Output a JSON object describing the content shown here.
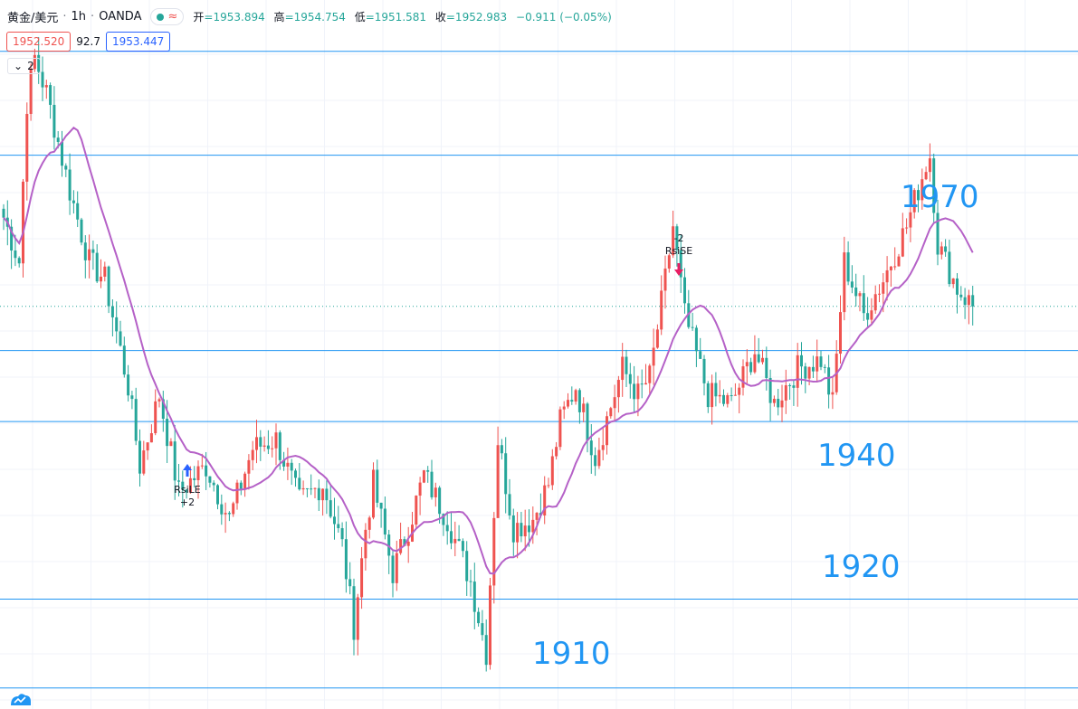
{
  "legend": {
    "symbol": "黄金/美元",
    "interval": "1h",
    "broker": "OANDA",
    "open_label": "开",
    "open": "=1953.894",
    "high_label": "高",
    "high": "=1954.754",
    "low_label": "低",
    "low": "=1951.581",
    "close_label": "收",
    "close": "=1952.983",
    "change": "−0.911 (−0.05%)"
  },
  "prices": {
    "bid": "1952.520",
    "spread": "92.7",
    "ask": "1953.447"
  },
  "indicators_toggle": {
    "count": "2"
  },
  "colors": {
    "up": "#ef5350",
    "down": "#26a69a",
    "ma": "#b561c7",
    "level_line": "#2196f3",
    "level_text": "#2196f3"
  },
  "annotations": [
    {
      "label": "1970"
    },
    {
      "label": "1940"
    },
    {
      "label": "1920"
    },
    {
      "label": "1910"
    }
  ],
  "signals": {
    "long": {
      "name": "RsiLE",
      "qty": "+2"
    },
    "short": {
      "name": "RsiSE",
      "qty": "-2"
    }
  },
  "chart_data": {
    "type": "candlestick",
    "title": "黄金/美元 · 1h · OANDA",
    "ylim": [
      1906,
      1983
    ],
    "horizontal_levels": [
      1981.7,
      1970,
      1948,
      1940,
      1920,
      1910
    ],
    "last_price_line": 1952.98,
    "series_ma_name": "",
    "waypoints_close": [
      [
        0,
        1963
      ],
      [
        4,
        1958
      ],
      [
        6,
        1976
      ],
      [
        8,
        1981
      ],
      [
        11,
        1977
      ],
      [
        17,
        1966
      ],
      [
        22,
        1958
      ],
      [
        26,
        1956
      ],
      [
        32,
        1944
      ],
      [
        35,
        1935
      ],
      [
        40,
        1943
      ],
      [
        45,
        1932
      ],
      [
        52,
        1935
      ],
      [
        58,
        1929
      ],
      [
        64,
        1937
      ],
      [
        70,
        1938
      ],
      [
        76,
        1931
      ],
      [
        82,
        1933
      ],
      [
        87,
        1926
      ],
      [
        90,
        1917
      ],
      [
        93,
        1928
      ],
      [
        95,
        1933
      ],
      [
        100,
        1923
      ],
      [
        104,
        1928
      ],
      [
        108,
        1934
      ],
      [
        114,
        1929
      ],
      [
        120,
        1922
      ],
      [
        124,
        1914
      ],
      [
        127,
        1938
      ],
      [
        131,
        1928
      ],
      [
        136,
        1929
      ],
      [
        140,
        1933
      ],
      [
        143,
        1940
      ],
      [
        147,
        1944
      ],
      [
        152,
        1936
      ],
      [
        159,
        1946
      ],
      [
        163,
        1943
      ],
      [
        166,
        1945
      ],
      [
        170,
        1956
      ],
      [
        172,
        1962
      ],
      [
        175,
        1952
      ],
      [
        181,
        1943
      ],
      [
        187,
        1942
      ],
      [
        193,
        1948
      ],
      [
        198,
        1942
      ],
      [
        204,
        1946
      ],
      [
        210,
        1947
      ],
      [
        213,
        1942
      ],
      [
        216,
        1958
      ],
      [
        221,
        1952
      ],
      [
        226,
        1956
      ],
      [
        232,
        1962
      ],
      [
        237,
        1969
      ],
      [
        238,
        1970
      ],
      [
        240,
        1960
      ],
      [
        245,
        1955
      ],
      [
        249,
        1953
      ]
    ]
  }
}
